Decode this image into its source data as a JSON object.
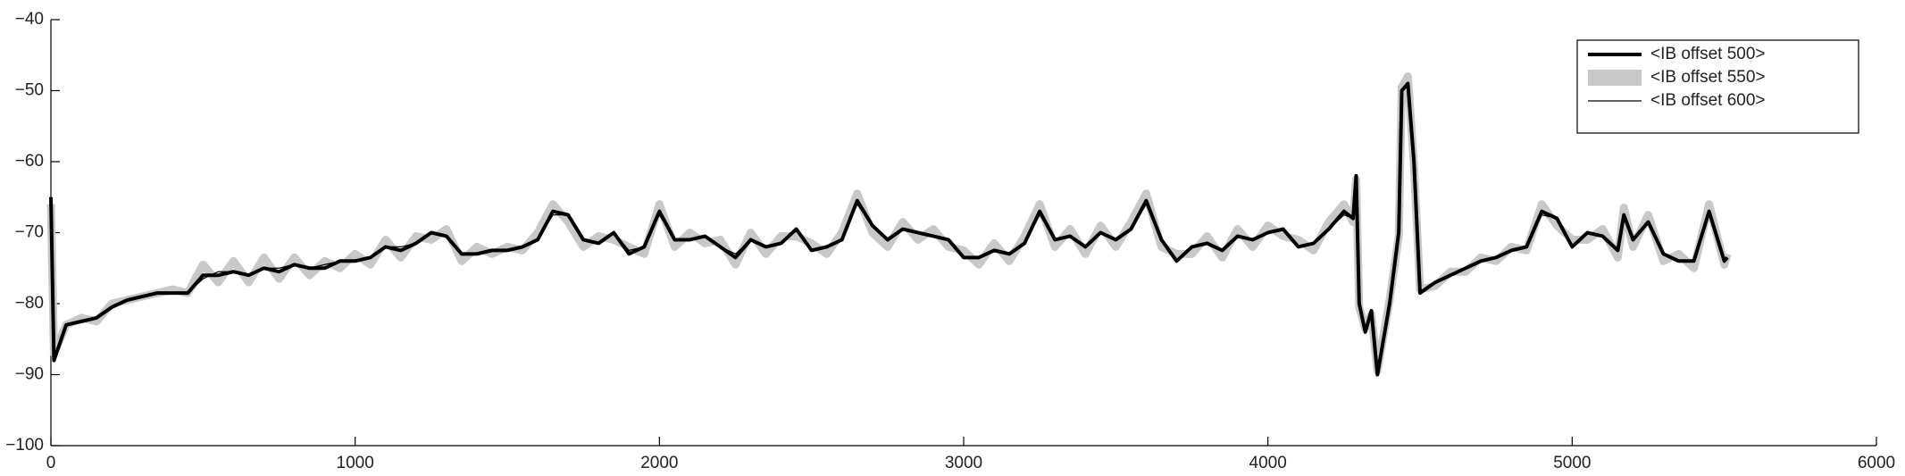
{
  "chart_data": {
    "type": "line",
    "x": [
      0,
      10,
      50,
      100,
      150,
      200,
      250,
      300,
      350,
      400,
      450,
      500,
      550,
      600,
      650,
      700,
      750,
      800,
      850,
      900,
      950,
      1000,
      1050,
      1100,
      1150,
      1200,
      1250,
      1300,
      1350,
      1400,
      1450,
      1500,
      1550,
      1600,
      1650,
      1700,
      1750,
      1800,
      1850,
      1900,
      1950,
      2000,
      2050,
      2100,
      2150,
      2200,
      2250,
      2300,
      2350,
      2400,
      2450,
      2500,
      2550,
      2600,
      2650,
      2700,
      2750,
      2800,
      2850,
      2900,
      2950,
      3000,
      3050,
      3100,
      3150,
      3200,
      3250,
      3300,
      3350,
      3400,
      3450,
      3500,
      3550,
      3600,
      3650,
      3700,
      3750,
      3800,
      3850,
      3900,
      3950,
      4000,
      4050,
      4100,
      4150,
      4200,
      4250,
      4280,
      4290,
      4300,
      4320,
      4340,
      4360,
      4400,
      4430,
      4440,
      4460,
      4480,
      4500,
      4550,
      4600,
      4650,
      4700,
      4750,
      4800,
      4850,
      4900,
      4950,
      5000,
      5050,
      5100,
      5150,
      5170,
      5200,
      5250,
      5300,
      5350,
      5400,
      5450,
      5500,
      5510
    ],
    "series": [
      {
        "name": "<IB offset 550>",
        "color": "#c8c8c8",
        "line_width": 9,
        "values": [
          -66,
          -87,
          -83,
          -82,
          -82.5,
          -80,
          -79.5,
          -79,
          -78.5,
          -78,
          -78.5,
          -74.5,
          -77,
          -74,
          -77,
          -73.5,
          -76.5,
          -73.5,
          -76,
          -74,
          -75,
          -73,
          -74.5,
          -71,
          -73.5,
          -70.5,
          -71,
          -69.5,
          -74,
          -72,
          -73,
          -72,
          -72.5,
          -70,
          -66,
          -68.5,
          -72,
          -70.5,
          -71,
          -72,
          -73,
          -66,
          -72,
          -70,
          -71.5,
          -71,
          -74.5,
          -70,
          -73,
          -70.5,
          -70.5,
          -71.5,
          -73,
          -70,
          -64.5,
          -70,
          -72,
          -68.5,
          -71,
          -69.5,
          -72,
          -72.5,
          -74.5,
          -71.5,
          -74,
          -70.5,
          -66,
          -72,
          -69.5,
          -73,
          -69,
          -72,
          -68.5,
          -64.5,
          -72,
          -73,
          -73,
          -70.5,
          -73.5,
          -69.5,
          -72,
          -69,
          -70.5,
          -71,
          -72.5,
          -68.5,
          -66,
          -68.5,
          -62.5,
          -80.5,
          -83.5,
          -81.5,
          -89.5,
          -79.5,
          -70.5,
          -49.5,
          -48,
          -60.5,
          -78,
          -77.5,
          -75.5,
          -75.5,
          -73.5,
          -74,
          -72,
          -72.5,
          -66,
          -69,
          -71,
          -71,
          -69.5,
          -73.5,
          -66.5,
          -72,
          -67.5,
          -74,
          -73,
          -75,
          -66,
          -74.5,
          -73
        ]
      },
      {
        "name": "<IB offset 500>",
        "color": "#000000",
        "line_width": 4,
        "values": [
          -65,
          -88,
          -83,
          -82.5,
          -82,
          -80.5,
          -79.5,
          -79,
          -78.5,
          -78.5,
          -78.5,
          -76,
          -76,
          -75.5,
          -76,
          -75,
          -75.5,
          -74.5,
          -75,
          -75,
          -74,
          -74,
          -73.5,
          -72,
          -72.5,
          -71.5,
          -70,
          -70.5,
          -73,
          -73,
          -72.5,
          -72.5,
          -72,
          -71,
          -67,
          -67.5,
          -71,
          -71.5,
          -70,
          -73,
          -72,
          -67,
          -71,
          -71,
          -70.5,
          -72,
          -73.5,
          -71,
          -72,
          -71.5,
          -69.5,
          -72.5,
          -72,
          -71,
          -65.5,
          -69,
          -71,
          -69.5,
          -70,
          -70.5,
          -71,
          -73.5,
          -73.5,
          -72.5,
          -73,
          -71.5,
          -67,
          -71,
          -70.5,
          -72,
          -70,
          -71,
          -69.5,
          -65.5,
          -71,
          -74,
          -72,
          -71.5,
          -72.5,
          -70.5,
          -71,
          -70,
          -69.5,
          -72,
          -71.5,
          -69.5,
          -67,
          -68,
          -62,
          -80,
          -84,
          -81,
          -90,
          -80,
          -70,
          -50,
          -49,
          -60,
          -78.5,
          -77,
          -76,
          -75,
          -74,
          -73.5,
          -72.5,
          -72,
          -67,
          -68,
          -72,
          -70,
          -70.5,
          -72.5,
          -67.5,
          -71,
          -68.5,
          -73,
          -74,
          -74,
          -67,
          -74,
          -73.5
        ]
      },
      {
        "name": "<IB offset 600>",
        "color": "#000000",
        "line_width": 1.2,
        "values": [
          -65.5,
          -87.5,
          -83,
          -82.5,
          -82,
          -80.5,
          -79.5,
          -79,
          -78.5,
          -78.5,
          -78.5,
          -76.5,
          -75.5,
          -75.5,
          -76,
          -75,
          -75,
          -74.5,
          -75,
          -74.5,
          -74,
          -74,
          -73.5,
          -72,
          -72,
          -71.5,
          -70,
          -70.5,
          -73,
          -73,
          -72.5,
          -72.5,
          -72,
          -71,
          -67.5,
          -67.5,
          -71,
          -71.5,
          -70,
          -72.5,
          -72,
          -67.5,
          -71,
          -71,
          -70.5,
          -72,
          -73,
          -71,
          -72,
          -71.5,
          -69.5,
          -72.5,
          -72,
          -71,
          -66,
          -69,
          -71,
          -69.5,
          -70,
          -70.5,
          -71,
          -73.5,
          -73.5,
          -72.5,
          -73,
          -71.5,
          -67.5,
          -71,
          -70.5,
          -72,
          -70,
          -71,
          -69.5,
          -66,
          -71,
          -74,
          -72,
          -71.5,
          -72.5,
          -70.5,
          -71,
          -70,
          -69.5,
          -72,
          -71.5,
          -69.5,
          -67.5,
          -68,
          -62,
          -80,
          -84,
          -81,
          -90,
          -80,
          -70,
          -50,
          -49,
          -60,
          -78.5,
          -77,
          -76,
          -75,
          -74,
          -73.5,
          -72.5,
          -72,
          -67.5,
          -68,
          -72,
          -70,
          -70.5,
          -72.5,
          -67.5,
          -71,
          -68.5,
          -73,
          -74,
          -74,
          -67.5,
          -74,
          -73.5
        ]
      }
    ],
    "legend_order": [
      1,
      0,
      2
    ],
    "legend": "upper right",
    "xlim": [
      0,
      6000
    ],
    "xticks": [
      0,
      1000,
      2000,
      3000,
      4000,
      5000,
      6000
    ],
    "ylim": [
      -100,
      -40
    ],
    "yticks": [
      {
        "value": -100,
        "label": "−100"
      },
      {
        "value": -90,
        "label": "−90"
      },
      {
        "value": -80,
        "label": "−80"
      },
      {
        "value": -70,
        "label": "−70"
      },
      {
        "value": -60,
        "label": "−60"
      },
      {
        "value": -50,
        "label": "−50"
      },
      {
        "value": -40,
        "label": "−40"
      }
    ]
  }
}
